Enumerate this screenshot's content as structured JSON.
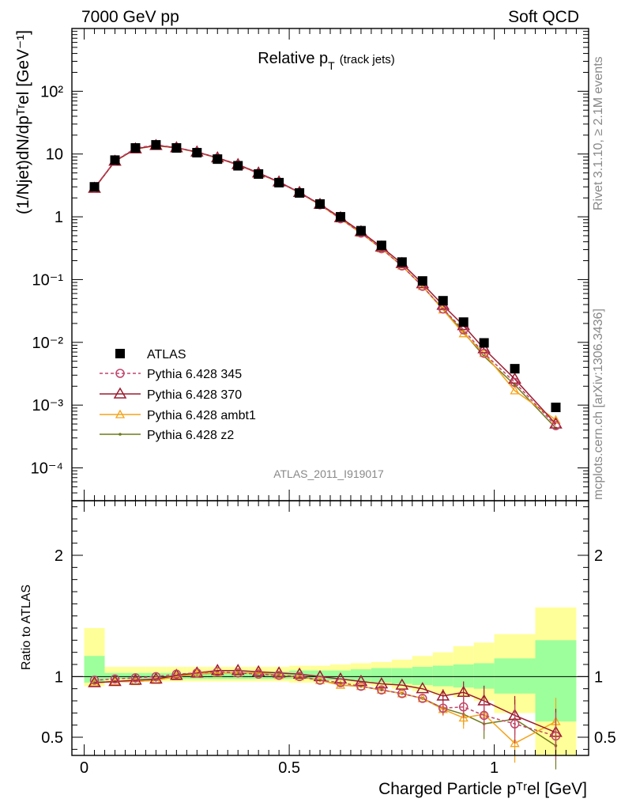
{
  "header": {
    "left": "7000 GeV pp",
    "right": "Soft QCD"
  },
  "side": {
    "rivet": "Rivet 3.1.10, ≥ 2.1M events",
    "mcplots": "mcplots.cern.ch [arXiv:1306.3436]"
  },
  "watermark": "ATLAS_2011_I919017",
  "colors": {
    "atlas": "#000000",
    "p345": "#c0446a",
    "p370": "#9b1b30",
    "ambt1": "#f5a31a",
    "z2": "#6f7a1c",
    "band_inner": "#9cff9c",
    "band_outer": "#ffff99"
  },
  "chart_data": [
    {
      "type": "line",
      "panel": "main",
      "title_main": "Relative p",
      "title_sub": "T",
      "title_suffix": "(track jets)",
      "ylabel": "(1/Njet)dN/dpᵀʳel [GeV⁻¹]",
      "yscale": "log",
      "ylim": [
        3e-05,
        1000
      ],
      "xlim": [
        -0.03,
        1.23
      ],
      "y_ticklabels": [
        "10⁻⁴",
        "10⁻³",
        "10⁻²",
        "10⁻¹",
        "1",
        "10",
        "10²"
      ],
      "x": [
        0.025,
        0.075,
        0.125,
        0.175,
        0.225,
        0.275,
        0.325,
        0.375,
        0.425,
        0.475,
        0.525,
        0.575,
        0.625,
        0.675,
        0.725,
        0.775,
        0.825,
        0.875,
        0.925,
        0.975,
        1.05,
        1.15
      ],
      "series": [
        {
          "name": "ATLAS",
          "marker": "square",
          "values": [
            3.0,
            8.0,
            12.5,
            14.0,
            12.5,
            10.5,
            8.3,
            6.5,
            4.8,
            3.5,
            2.4,
            1.6,
            1.0,
            0.6,
            0.35,
            0.19,
            0.095,
            0.046,
            0.021,
            0.0098,
            0.0038,
            0.00092
          ]
        },
        {
          "name": "Pythia 6.428 345",
          "marker": "circle",
          "dashed": true,
          "values": [
            2.9,
            7.8,
            12.4,
            14.0,
            12.7,
            10.8,
            8.6,
            6.7,
            4.9,
            3.55,
            2.42,
            1.55,
            0.93,
            0.55,
            0.31,
            0.165,
            0.078,
            0.034,
            0.0158,
            0.0067,
            0.0023,
            0.00047
          ]
        },
        {
          "name": "Pythia 6.428 370",
          "marker": "triangle",
          "values": [
            2.85,
            7.7,
            12.1,
            13.7,
            12.6,
            10.8,
            8.7,
            6.8,
            5.0,
            3.6,
            2.45,
            1.58,
            0.97,
            0.58,
            0.33,
            0.18,
            0.086,
            0.039,
            0.0185,
            0.0079,
            0.0026,
            0.0005
          ]
        },
        {
          "name": "Pythia 6.428 ambt1",
          "marker": "triangle-small",
          "values": [
            2.85,
            7.7,
            12.0,
            13.6,
            12.5,
            10.7,
            8.6,
            6.7,
            4.95,
            3.55,
            2.42,
            1.55,
            0.93,
            0.55,
            0.31,
            0.165,
            0.078,
            0.033,
            0.0138,
            0.0067,
            0.0017,
            0.00058
          ]
        },
        {
          "name": "Pythia 6.428 z2",
          "marker": "dot",
          "values": [
            2.85,
            7.65,
            12.0,
            13.6,
            12.5,
            10.7,
            8.6,
            6.7,
            4.95,
            3.55,
            2.42,
            1.55,
            0.93,
            0.55,
            0.31,
            0.165,
            0.078,
            0.034,
            0.0145,
            0.006,
            0.0021,
            0.00043
          ]
        }
      ]
    },
    {
      "type": "line",
      "panel": "ratio",
      "ylabel": "Ratio to ATLAS",
      "xlabel": "Charged Particle pᵀʳel [GeV]",
      "ylim": [
        0.35,
        2.45
      ],
      "xlim": [
        -0.03,
        1.23
      ],
      "y_ticklabels": [
        "0.5",
        "1",
        "2"
      ],
      "x_ticklabels": [
        "0",
        "0.5",
        "1"
      ],
      "bins": [
        [
          0.0,
          0.05
        ],
        [
          0.05,
          0.1
        ],
        [
          0.1,
          0.15
        ],
        [
          0.15,
          0.2
        ],
        [
          0.2,
          0.25
        ],
        [
          0.25,
          0.3
        ],
        [
          0.3,
          0.35
        ],
        [
          0.35,
          0.4
        ],
        [
          0.4,
          0.45
        ],
        [
          0.45,
          0.5
        ],
        [
          0.5,
          0.55
        ],
        [
          0.55,
          0.6
        ],
        [
          0.6,
          0.65
        ],
        [
          0.65,
          0.7
        ],
        [
          0.7,
          0.75
        ],
        [
          0.75,
          0.8
        ],
        [
          0.8,
          0.85
        ],
        [
          0.85,
          0.9
        ],
        [
          0.9,
          0.95
        ],
        [
          0.95,
          1.0
        ],
        [
          1.0,
          1.1
        ],
        [
          1.1,
          1.2
        ]
      ],
      "band_inner": [
        [
          0.95,
          1.17
        ],
        [
          0.98,
          1.03
        ],
        [
          0.98,
          1.03
        ],
        [
          0.98,
          1.03
        ],
        [
          0.98,
          1.03
        ],
        [
          0.98,
          1.03
        ],
        [
          0.98,
          1.04
        ],
        [
          0.98,
          1.04
        ],
        [
          0.98,
          1.04
        ],
        [
          0.98,
          1.04
        ],
        [
          0.98,
          1.05
        ],
        [
          0.97,
          1.05
        ],
        [
          0.97,
          1.05
        ],
        [
          0.96,
          1.06
        ],
        [
          0.95,
          1.07
        ],
        [
          0.94,
          1.07
        ],
        [
          0.93,
          1.08
        ],
        [
          0.92,
          1.09
        ],
        [
          0.91,
          1.1
        ],
        [
          0.9,
          1.11
        ],
        [
          0.86,
          1.15
        ],
        [
          0.63,
          1.3
        ]
      ],
      "band_outer": [
        [
          0.92,
          1.4
        ],
        [
          0.96,
          1.08
        ],
        [
          0.96,
          1.08
        ],
        [
          0.96,
          1.08
        ],
        [
          0.96,
          1.08
        ],
        [
          0.96,
          1.08
        ],
        [
          0.96,
          1.08
        ],
        [
          0.96,
          1.08
        ],
        [
          0.96,
          1.08
        ],
        [
          0.96,
          1.08
        ],
        [
          0.95,
          1.09
        ],
        [
          0.95,
          1.09
        ],
        [
          0.94,
          1.1
        ],
        [
          0.93,
          1.11
        ],
        [
          0.92,
          1.12
        ],
        [
          0.9,
          1.14
        ],
        [
          0.88,
          1.17
        ],
        [
          0.85,
          1.2
        ],
        [
          0.83,
          1.25
        ],
        [
          0.8,
          1.28
        ],
        [
          0.7,
          1.35
        ],
        [
          0.35,
          1.57
        ]
      ],
      "series": [
        {
          "name": "Pythia 6.428 345",
          "marker": "circle",
          "dashed": true,
          "values": [
            0.97,
            0.98,
            0.99,
            1.0,
            1.02,
            1.03,
            1.04,
            1.03,
            1.02,
            1.01,
            1.0,
            0.97,
            0.95,
            0.92,
            0.89,
            0.86,
            0.82,
            0.74,
            0.75,
            0.68,
            0.61,
            0.51
          ]
        },
        {
          "name": "Pythia 6.428 370",
          "marker": "triangle",
          "values": [
            0.95,
            0.96,
            0.97,
            0.98,
            1.01,
            1.03,
            1.05,
            1.05,
            1.04,
            1.03,
            1.02,
            1.0,
            0.98,
            0.96,
            0.94,
            0.93,
            0.9,
            0.84,
            0.87,
            0.8,
            0.68,
            0.54
          ]
        },
        {
          "name": "Pythia 6.428 ambt1",
          "marker": "triangle-small",
          "values": [
            0.95,
            0.96,
            0.96,
            0.97,
            1.0,
            1.02,
            1.03,
            1.03,
            1.03,
            1.01,
            1.0,
            0.97,
            0.93,
            0.92,
            0.89,
            0.86,
            0.82,
            0.73,
            0.66,
            0.69,
            0.45,
            0.63
          ]
        },
        {
          "name": "Pythia 6.428 z2",
          "marker": "dot",
          "values": [
            0.95,
            0.96,
            0.96,
            0.97,
            1.0,
            1.02,
            1.03,
            1.03,
            1.03,
            1.01,
            1.0,
            0.97,
            0.93,
            0.92,
            0.89,
            0.86,
            0.82,
            0.74,
            0.69,
            0.61,
            0.65,
            0.43
          ]
        }
      ]
    }
  ]
}
